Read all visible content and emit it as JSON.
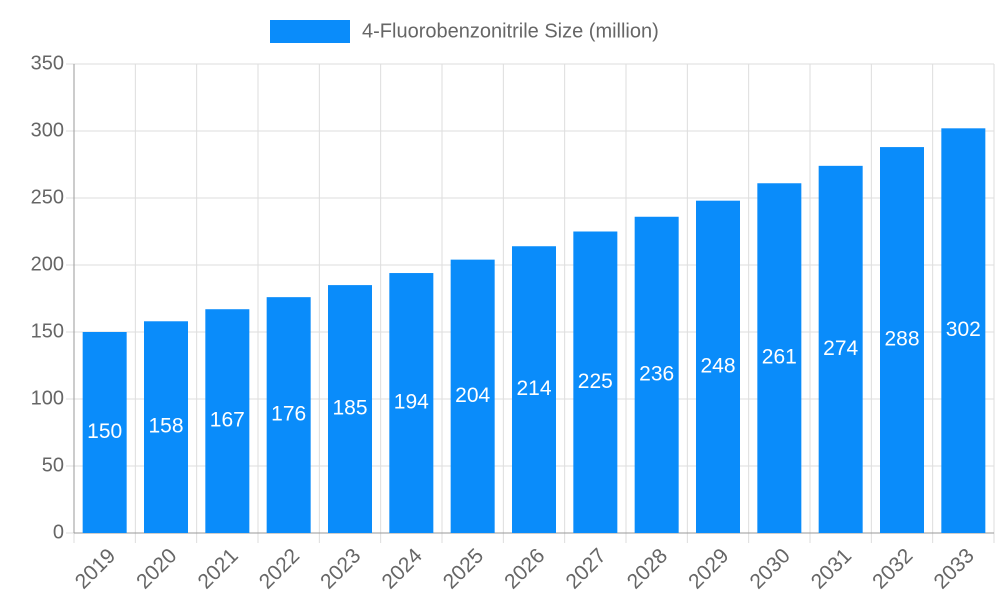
{
  "chart_data": {
    "type": "bar",
    "categories": [
      "2019",
      "2020",
      "2021",
      "2022",
      "2023",
      "2024",
      "2025",
      "2026",
      "2027",
      "2028",
      "2029",
      "2030",
      "2031",
      "2032",
      "2033"
    ],
    "series": [
      {
        "name": "4-Fluorobenzonitrile Size (million)",
        "color": "#0a8cfa",
        "values": [
          150,
          158,
          167,
          176,
          185,
          194,
          204,
          214,
          225,
          236,
          248,
          261,
          274,
          288,
          302
        ]
      }
    ],
    "ylim": [
      0,
      350
    ],
    "yticks": [
      0,
      50,
      100,
      150,
      200,
      250,
      300,
      350
    ],
    "grid": true,
    "legend": "top",
    "data_labels": true
  }
}
